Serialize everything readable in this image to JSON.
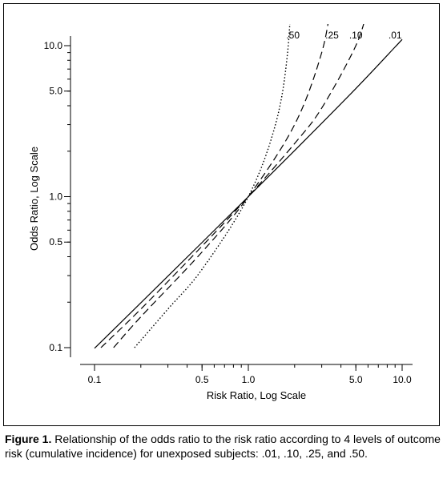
{
  "chart_data": {
    "type": "line",
    "xlabel": "Risk Ratio, Log Scale",
    "ylabel": "Odds Ratio, Log Scale",
    "x_scale": "log",
    "y_scale": "log",
    "xlim": [
      0.1,
      10.0
    ],
    "ylim": [
      0.1,
      10.0
    ],
    "x_ticks": [
      0.1,
      0.5,
      1.0,
      5.0,
      10.0
    ],
    "x_tick_labels": [
      "0.1",
      "0.5",
      "1.0",
      "5.0",
      "10.0"
    ],
    "y_ticks": [
      0.1,
      0.5,
      1.0,
      5.0,
      10.0
    ],
    "y_tick_labels": [
      "0.1",
      "0.5",
      "1.0",
      "5.0",
      "10.0"
    ],
    "grid": false,
    "series": [
      {
        "name": ".01",
        "line_style": "solid",
        "x": [
          0.1,
          0.2,
          0.5,
          1.0,
          2.0,
          5.0,
          9.0,
          10.0
        ],
        "y": [
          0.099,
          0.198,
          0.497,
          1.0,
          2.02,
          5.2,
          9.8,
          11.0
        ]
      },
      {
        "name": ".10",
        "line_style": "dashed",
        "x": [
          0.11,
          0.2,
          0.5,
          1.0,
          2.0,
          3.0,
          5.0,
          6.0
        ],
        "y": [
          0.1,
          0.18,
          0.47,
          1.0,
          2.25,
          3.86,
          10.0,
          18.0
        ]
      },
      {
        "name": ".25",
        "line_style": "dashed",
        "x": [
          0.133,
          0.2,
          0.5,
          1.0,
          2.0,
          3.0,
          3.5
        ],
        "y": [
          0.1,
          0.16,
          0.43,
          1.0,
          3.0,
          9.0,
          21.0
        ]
      },
      {
        "name": ".50",
        "line_style": "dotted",
        "x": [
          0.182,
          0.3,
          0.5,
          1.0,
          1.5,
          1.8,
          1.95
        ],
        "y": [
          0.1,
          0.18,
          0.33,
          1.0,
          3.0,
          9.0,
          39.0
        ]
      }
    ]
  },
  "caption": {
    "lead": "Figure 1.",
    "text": " Relationship of the odds ratio to the risk ratio according to 4 levels of outcome risk (cumulative incidence) for unexposed subjects: .01, .10, .25, and .50."
  }
}
